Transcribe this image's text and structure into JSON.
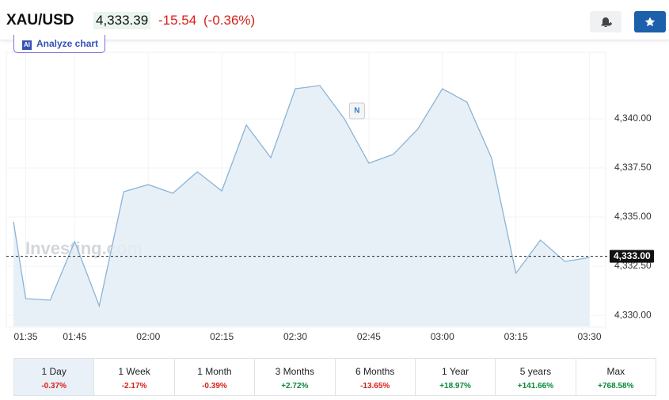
{
  "header": {
    "symbol": "XAU/USD",
    "price": "4,333.39",
    "change": "-15.54",
    "change_pct": "(-0.36%)"
  },
  "analyze_button": "Analyze chart",
  "chart_data": {
    "type": "area",
    "color": "#8ab4d8",
    "fill": "#e4edf6",
    "x": [
      92.5,
      95,
      100,
      105,
      110,
      115,
      120,
      125,
      130,
      135,
      140,
      145,
      150,
      155,
      160,
      165,
      170,
      175,
      180,
      185,
      190,
      195,
      200,
      205,
      210
    ],
    "values": [
      4334.76,
      4330.85,
      4330.77,
      4333.75,
      4330.48,
      4336.29,
      4336.65,
      4336.21,
      4337.3,
      4336.33,
      4339.68,
      4338.02,
      4341.53,
      4341.69,
      4340.0,
      4337.74,
      4338.19,
      4339.48,
      4341.53,
      4340.85,
      4338.02,
      4332.14,
      4333.83,
      4332.74,
      4332.94
    ],
    "xlim": [
      92.5,
      212.5
    ],
    "ylim": [
      4329.44,
      4342.9
    ],
    "xticks": [
      {
        "value": 95,
        "label": "01:35"
      },
      {
        "value": 105,
        "label": "01:45"
      },
      {
        "value": 120,
        "label": "02:00"
      },
      {
        "value": 135,
        "label": "02:15"
      },
      {
        "value": 150,
        "label": "02:30"
      },
      {
        "value": 165,
        "label": "02:45"
      },
      {
        "value": 180,
        "label": "03:00"
      },
      {
        "value": 195,
        "label": "03:15"
      },
      {
        "value": 210,
        "label": "03:30"
      }
    ],
    "yticks": [
      {
        "value": 4330,
        "label": "4,330.00"
      },
      {
        "value": 4332.5,
        "label": "4,332.50"
      },
      {
        "value": 4335,
        "label": "4,335.00"
      },
      {
        "value": 4337.5,
        "label": "4,337.50"
      },
      {
        "value": 4340,
        "label": "4,340.00"
      }
    ],
    "price_line": {
      "value": 4333,
      "label": "4,333.00"
    },
    "marker": {
      "x": 162.5,
      "label": "N"
    },
    "watermark": "Investing.com"
  },
  "periods": [
    {
      "label": "1 Day",
      "change": "-0.37%"
    },
    {
      "label": "1 Week",
      "change": "-2.17%"
    },
    {
      "label": "1 Month",
      "change": "-0.39%"
    },
    {
      "label": "3 Months",
      "change": "+2.72%"
    },
    {
      "label": "6 Months",
      "change": "-13.65%"
    },
    {
      "label": "1 Year",
      "change": "+18.97%"
    },
    {
      "label": "5 years",
      "change": "+141.66%"
    },
    {
      "label": "Max",
      "change": "+768.58%"
    }
  ]
}
